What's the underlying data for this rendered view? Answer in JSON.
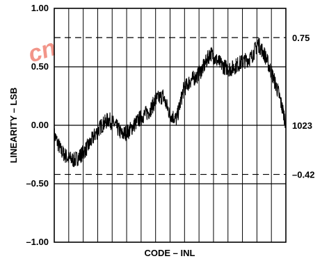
{
  "chart_data": {
    "type": "line",
    "title": "",
    "xlabel": "CODE – INL",
    "ylabel": "LINEARITY – LSB",
    "x_range": [
      0,
      1023
    ],
    "y_range": [
      -1.0,
      1.0
    ],
    "y_ticks": [
      "1.00",
      "0.50",
      "0.00",
      "–0.50",
      "–1.00"
    ],
    "y_tick_values": [
      1.0,
      0.5,
      0.0,
      -0.5,
      -1.0
    ],
    "grid": "vertical lines every ~1/16 of code range; horizontal at ±0.50 and 0.00",
    "reference_lines": [
      {
        "label": "0.75",
        "value": 0.75,
        "style": "dashed"
      },
      {
        "label": "–0.42",
        "value": -0.42,
        "style": "dashed"
      }
    ],
    "right_annotations": [
      {
        "label": "1023",
        "value": 0.0
      }
    ],
    "series": [
      {
        "x": [
          0,
          30,
          60,
          90,
          120,
          150,
          180,
          210,
          240,
          270,
          300,
          330,
          360,
          390,
          420,
          450,
          480,
          510,
          540,
          570,
          600,
          630,
          660,
          690,
          720,
          750,
          780,
          810,
          840,
          870,
          900,
          930,
          960,
          990,
          1023
        ],
        "y": [
          -0.08,
          -0.22,
          -0.28,
          -0.3,
          -0.25,
          -0.18,
          -0.08,
          0.0,
          0.05,
          0.0,
          -0.08,
          -0.05,
          0.02,
          0.08,
          0.12,
          0.22,
          0.25,
          0.1,
          0.05,
          0.3,
          0.38,
          0.42,
          0.5,
          0.62,
          0.55,
          0.5,
          0.48,
          0.52,
          0.55,
          0.58,
          0.7,
          0.6,
          0.45,
          0.28,
          0.02
        ]
      }
    ]
  },
  "watermark": {
    "text": "cn"
  }
}
